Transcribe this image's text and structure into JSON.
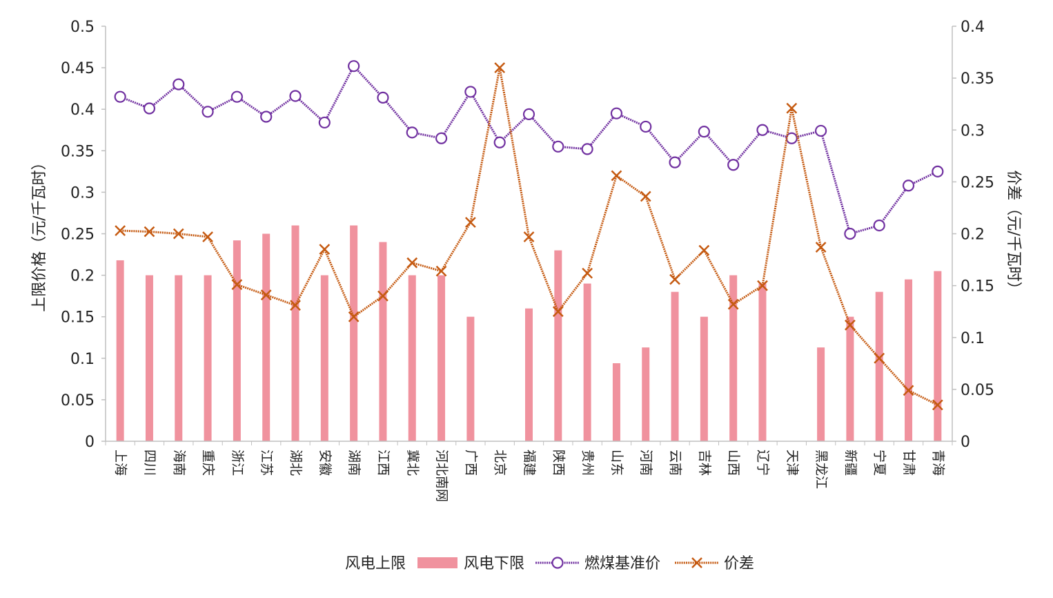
{
  "chart_data": {
    "type": "bar+line",
    "title": "",
    "categories": [
      "上海",
      "四川",
      "海南",
      "重庆",
      "浙江",
      "江苏",
      "湖北",
      "安徽",
      "湖南",
      "江西",
      "冀北",
      "河北南网",
      "广西",
      "北京",
      "福建",
      "陕西",
      "贵州",
      "山东",
      "河南",
      "云南",
      "吉林",
      "山西",
      "辽宁",
      "天津",
      "黑龙江",
      "新疆",
      "宁夏",
      "甘肃",
      "青海"
    ],
    "ylabel_left": "上限价格（元/千瓦时）",
    "ylabel_right": "价差（元/千瓦时）",
    "ylim_left": [
      0,
      0.5
    ],
    "ylim_right": [
      0,
      0.4
    ],
    "yticks_left": [
      "0",
      "0.05",
      "0.1",
      "0.15",
      "0.2",
      "0.25",
      "0.3",
      "0.35",
      "0.4",
      "0.45",
      "0.5"
    ],
    "yticks_right": [
      "0",
      "0.05",
      "0.1",
      "0.15",
      "0.2",
      "0.25",
      "0.3",
      "0.35",
      "0.4"
    ],
    "grid": false,
    "legend_position": "bottom",
    "series": [
      {
        "name": "风电上限",
        "type": "bar",
        "axis": "left",
        "color": "#e31a1c",
        "values": [
          null,
          null,
          null,
          null,
          null,
          null,
          null,
          null,
          null,
          null,
          null,
          null,
          null,
          null,
          null,
          null,
          null,
          null,
          null,
          null,
          null,
          null,
          null,
          null,
          null,
          null,
          null,
          null,
          null
        ]
      },
      {
        "name": "风电下限",
        "type": "bar",
        "axis": "left",
        "color": "#f0929e",
        "values": [
          0.218,
          0.2,
          0.2,
          0.2,
          0.242,
          0.25,
          0.26,
          0.2,
          0.26,
          0.24,
          0.2,
          0.2,
          0.15,
          0,
          0.16,
          0.23,
          0.19,
          0.094,
          0.113,
          0.18,
          0.15,
          0.2,
          0.19,
          0,
          0.113,
          0.15,
          0.18,
          0.195,
          0.205
        ]
      },
      {
        "name": "燃煤基准价",
        "type": "line",
        "axis": "left",
        "color": "#7030a0",
        "marker": "circle",
        "values": [
          0.415,
          0.401,
          0.43,
          0.397,
          0.415,
          0.391,
          0.416,
          0.384,
          0.452,
          0.414,
          0.372,
          0.365,
          0.421,
          0.36,
          0.394,
          0.355,
          0.352,
          0.395,
          0.379,
          0.336,
          0.373,
          0.333,
          0.375,
          0.365,
          0.374,
          0.25,
          0.26,
          0.308,
          0.325
        ]
      },
      {
        "name": "价差",
        "type": "line",
        "axis": "right",
        "color": "#c55a11",
        "marker": "x",
        "values": [
          0.203,
          0.202,
          0.2,
          0.197,
          0.151,
          0.141,
          0.131,
          0.185,
          0.12,
          0.14,
          0.172,
          0.164,
          0.211,
          0.36,
          0.197,
          0.125,
          0.162,
          0.256,
          0.236,
          0.156,
          0.184,
          0.132,
          0.15,
          0.321,
          0.187,
          0.112,
          0.08,
          0.049,
          0.035
        ]
      }
    ]
  }
}
